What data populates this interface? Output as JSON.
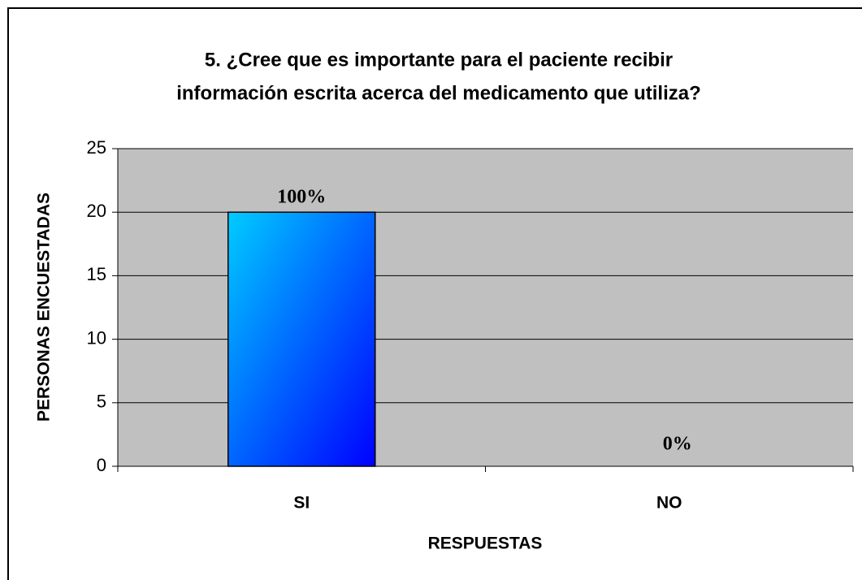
{
  "chart_data": {
    "type": "bar",
    "title": [
      "5.  ¿Cree que es importante para el paciente recibir",
      "información escrita acerca del medicamento que utiliza?"
    ],
    "x_label": "RESPUESTAS",
    "y_label": "PERSONAS ENCUESTADAS",
    "categories": [
      "SI",
      "NO"
    ],
    "values": [
      20,
      0
    ],
    "value_labels": [
      "100%",
      "0%"
    ],
    "color": "#0066ff",
    "ylim": [
      0,
      25
    ],
    "yticks": [
      0,
      5,
      10,
      15,
      20,
      25
    ],
    "grid": true
  }
}
